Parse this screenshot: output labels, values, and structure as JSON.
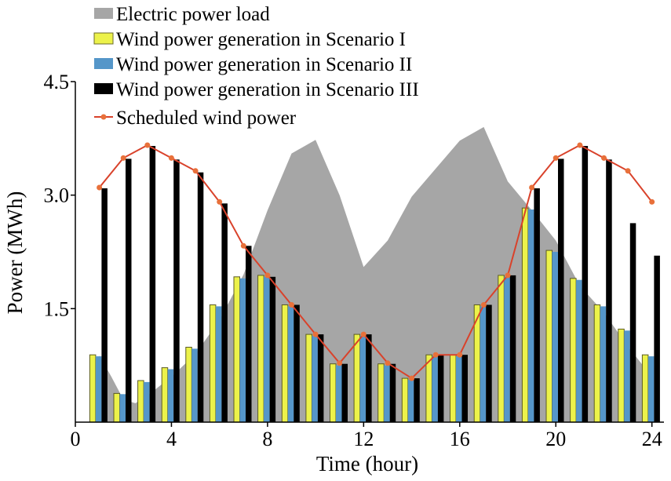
{
  "chart_data": {
    "type": "bar",
    "xlabel": "Time (hour)",
    "ylabel": "Power (MWh)",
    "xlim": [
      0,
      24.5
    ],
    "ylim": [
      0,
      4.5
    ],
    "xticks": [
      0,
      4,
      8,
      12,
      16,
      20,
      24
    ],
    "xtick_labels": [
      "0",
      "4",
      "8",
      "12",
      "16",
      "20",
      "24"
    ],
    "yticks": [
      1.5,
      3.0,
      4.5
    ],
    "ytick_labels": [
      "1.5",
      "3.0",
      "4.5"
    ],
    "grid": false,
    "legend_position": "top-left",
    "hours": [
      1,
      2,
      3,
      4,
      5,
      6,
      7,
      8,
      9,
      10,
      11,
      12,
      13,
      14,
      15,
      16,
      17,
      18,
      19,
      20,
      21,
      22,
      23,
      24
    ],
    "load": {
      "name": "Electric power load",
      "color": "#a6a6a6",
      "x": [
        1,
        1.5,
        2,
        2.5,
        3,
        4,
        5,
        6,
        7,
        8,
        9,
        10,
        11,
        12,
        13,
        14,
        15,
        16,
        17,
        18,
        19,
        20,
        21,
        22,
        23,
        24
      ],
      "values": [
        0.88,
        0.6,
        0.3,
        0.25,
        0.35,
        0.6,
        0.9,
        1.35,
        1.95,
        2.8,
        3.55,
        3.73,
        3.0,
        2.05,
        2.4,
        2.98,
        3.35,
        3.72,
        3.9,
        3.18,
        2.8,
        2.4,
        1.8,
        1.45,
        1.0,
        0.6
      ]
    },
    "series": [
      {
        "name": "Wind power generation in Scenario I",
        "color": "#ecf24a",
        "values": [
          0.89,
          0.38,
          0.55,
          0.72,
          0.99,
          1.55,
          1.92,
          1.94,
          1.55,
          1.16,
          0.77,
          1.16,
          0.77,
          0.58,
          0.89,
          0.89,
          1.55,
          1.94,
          2.83,
          2.27,
          1.9,
          1.55,
          1.23,
          0.89
        ]
      },
      {
        "name": "Wind power generation in Scenario II",
        "color": "#5596c9",
        "values": [
          0.87,
          0.37,
          0.53,
          0.7,
          0.97,
          1.53,
          1.9,
          1.92,
          1.53,
          1.14,
          0.75,
          1.14,
          0.75,
          0.56,
          0.87,
          0.87,
          1.53,
          1.92,
          2.81,
          2.25,
          1.88,
          1.53,
          1.21,
          0.87
        ]
      },
      {
        "name": "Wind power generation in Scenario III",
        "color": "#000000",
        "values": [
          3.09,
          3.48,
          3.65,
          3.47,
          3.3,
          2.89,
          2.33,
          1.92,
          1.55,
          1.16,
          0.77,
          1.16,
          0.77,
          0.58,
          0.89,
          0.89,
          1.55,
          1.94,
          3.09,
          3.48,
          3.65,
          3.47,
          2.63,
          2.2
        ]
      }
    ],
    "scheduled": {
      "name": "Scheduled wind power",
      "color": "#d9422b",
      "values": [
        3.1,
        3.49,
        3.66,
        3.49,
        3.32,
        2.91,
        2.33,
        1.94,
        1.55,
        1.16,
        0.78,
        1.16,
        0.78,
        0.58,
        0.89,
        0.89,
        1.55,
        1.94,
        3.1,
        3.49,
        3.66,
        3.49,
        3.32,
        2.91
      ]
    }
  }
}
